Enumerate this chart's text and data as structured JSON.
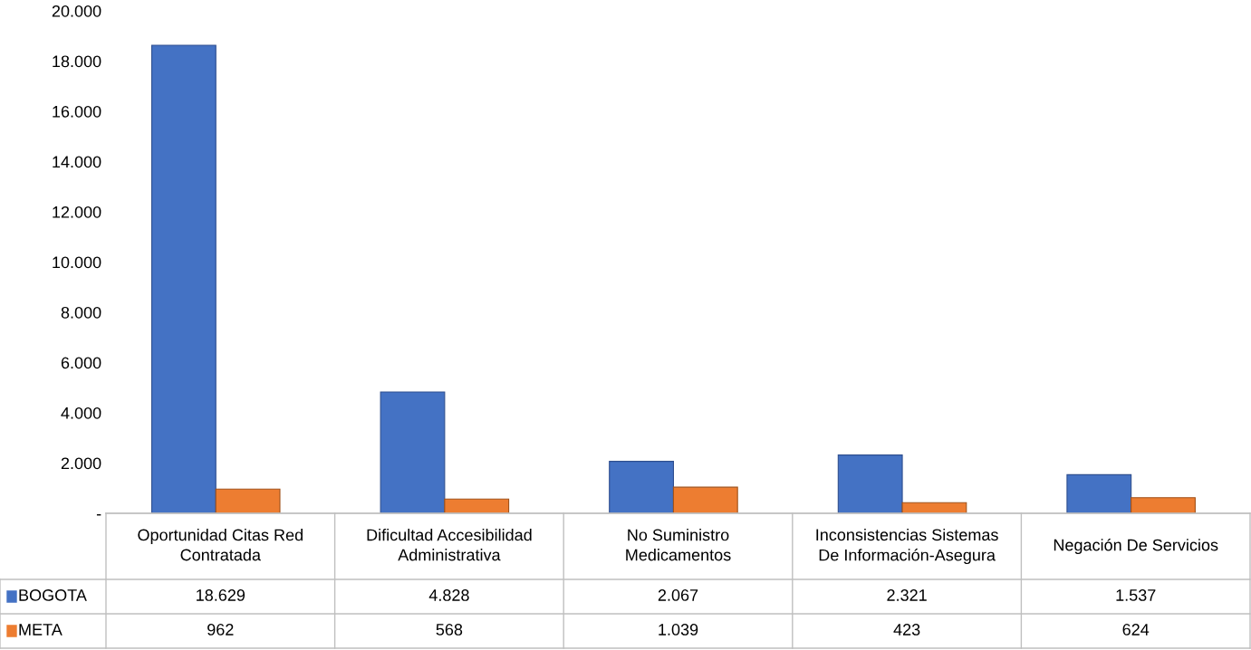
{
  "chart_data": {
    "type": "bar",
    "categories": [
      "Oportunidad Citas Red\nContratada",
      "Dificultad Accesibilidad\nAdministrativa",
      "No Suministro\nMedicamentos",
      "Inconsistencias Sistemas\nDe Información-Asegura",
      "Negación De Servicios"
    ],
    "series": [
      {
        "name": "BOGOTA",
        "color": "#4472c4",
        "values": [
          18629,
          4828,
          2067,
          2321,
          1537
        ],
        "value_labels": [
          "18.629",
          "4.828",
          "2.067",
          "2.321",
          "1.537"
        ]
      },
      {
        "name": "META",
        "color": "#ed7d31",
        "values": [
          962,
          568,
          1039,
          423,
          624
        ],
        "value_labels": [
          "962",
          "568",
          "1.039",
          "423",
          "624"
        ]
      }
    ],
    "ylim": [
      0,
      20000
    ],
    "yticks": [
      {
        "value": 0,
        "label": "-"
      },
      {
        "value": 2000,
        "label": "2.000"
      },
      {
        "value": 4000,
        "label": "4.000"
      },
      {
        "value": 6000,
        "label": "6.000"
      },
      {
        "value": 8000,
        "label": "8.000"
      },
      {
        "value": 10000,
        "label": "10.000"
      },
      {
        "value": 12000,
        "label": "12.000"
      },
      {
        "value": 14000,
        "label": "14.000"
      },
      {
        "value": 16000,
        "label": "16.000"
      },
      {
        "value": 18000,
        "label": "18.000"
      },
      {
        "value": 20000,
        "label": "20.000"
      }
    ],
    "grid": false,
    "legend": "bottom left",
    "data_labels": true
  }
}
